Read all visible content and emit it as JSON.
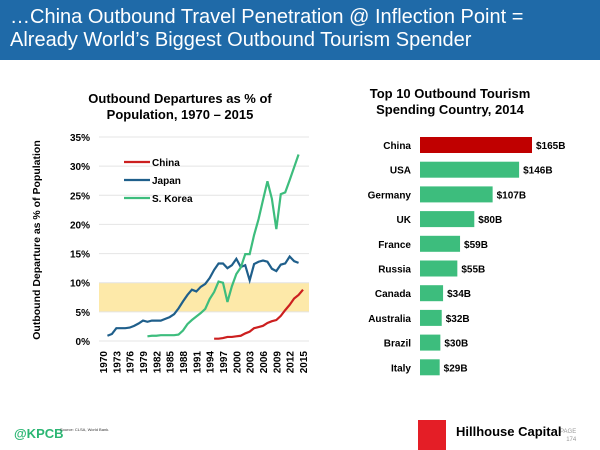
{
  "header": {
    "title_line1": "…China Outbound Travel Penetration @ Inflection Point =",
    "title_line2": "Already World’s Biggest Outbound Tourism Spender"
  },
  "chart_data": [
    {
      "type": "line",
      "title": "Outbound Departures as % of Population, 1970 – 2015",
      "title_line1": "Outbound Departures as % of",
      "title_line2": "Population, 1970 – 2015",
      "ylabel": "Outbound Departure as % of Population",
      "ylim": [
        0,
        35
      ],
      "yticks": [
        "0%",
        "5%",
        "10%",
        "15%",
        "20%",
        "25%",
        "30%",
        "35%"
      ],
      "xlim": [
        1970,
        2015
      ],
      "xticks": [
        "1970",
        "1973",
        "1976",
        "1979",
        "1982",
        "1985",
        "1988",
        "1991",
        "1994",
        "1997",
        "2000",
        "2003",
        "2006",
        "2009",
        "2012",
        "2015"
      ],
      "grid": true,
      "legend": "top-left",
      "highlight_band": [
        5,
        10
      ],
      "highlight_color": "#fde9a9",
      "series": [
        {
          "name": "China",
          "color": "#cc1f1f",
          "start": 1995,
          "values": [
            0.4,
            0.4,
            0.5,
            0.7,
            0.7,
            0.8,
            0.9,
            1.3,
            1.6,
            2.2,
            2.4,
            2.6,
            3.1,
            3.4,
            3.6,
            4.3,
            5.3,
            6.2,
            7.3,
            7.9,
            8.8
          ]
        },
        {
          "name": "Japan",
          "color": "#1f5f8b",
          "start": 1971,
          "values": [
            0.9,
            1.2,
            2.2,
            2.2,
            2.2,
            2.3,
            2.6,
            3.0,
            3.5,
            3.3,
            3.5,
            3.5,
            3.5,
            3.8,
            4.1,
            4.6,
            5.6,
            6.8,
            7.9,
            8.8,
            8.5,
            9.3,
            9.8,
            10.8,
            12.2,
            13.3,
            13.3,
            12.5,
            13.0,
            14.1,
            12.7,
            13.0,
            10.4,
            13.2,
            13.6,
            13.8,
            13.6,
            12.4,
            12.0,
            13.1,
            13.3,
            14.5,
            13.7,
            13.4
          ]
        },
        {
          "name": "S. Korea",
          "color": "#3dbd7d",
          "start": 1980,
          "values": [
            0.8,
            0.9,
            0.9,
            1.0,
            1.0,
            1.0,
            1.0,
            1.1,
            1.8,
            2.9,
            3.6,
            4.2,
            4.8,
            5.5,
            7.2,
            8.4,
            10.2,
            10.0,
            6.7,
            9.4,
            11.5,
            12.6,
            14.9,
            14.9,
            18.2,
            20.9,
            24.2,
            27.4,
            24.4,
            19.2,
            25.2,
            25.5,
            27.6,
            29.8,
            32.0
          ]
        }
      ]
    },
    {
      "type": "bar",
      "orientation": "horizontal",
      "title": "Top 10 Outbound Tourism Spending Country, 2014",
      "title_line1": "Top 10 Outbound Tourism",
      "title_line2": "Spending Country, 2014",
      "categories": [
        "China",
        "USA",
        "Germany",
        "UK",
        "France",
        "Russia",
        "Canada",
        "Australia",
        "Brazil",
        "Italy"
      ],
      "values": [
        165,
        146,
        107,
        80,
        59,
        55,
        34,
        32,
        30,
        29
      ],
      "labels": [
        "$165B",
        "$146B",
        "$107B",
        "$80B",
        "$59B",
        "$55B",
        "$34B",
        "$32B",
        "$30B",
        "$29B"
      ],
      "colors": [
        "#c00000",
        "#3dbd7d",
        "#3dbd7d",
        "#3dbd7d",
        "#3dbd7d",
        "#3dbd7d",
        "#3dbd7d",
        "#3dbd7d",
        "#3dbd7d",
        "#3dbd7d"
      ]
    }
  ],
  "footer": {
    "handle": "@KPCB",
    "source": "Source: CLSA, World Bank.",
    "logo_text": "HILLHOUSE CAPITAL",
    "brand": "Hillhouse Capital",
    "page_label": "PAGE",
    "page_number": "174"
  }
}
